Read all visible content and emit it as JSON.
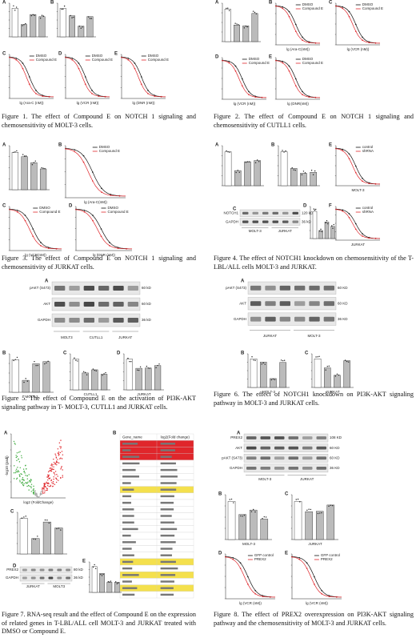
{
  "figures": [
    {
      "caption": "Figure 1. The effect of Compound E on NOTCH 1 signaling and chemosensitivity of MOLT-3 cells.",
      "legend": [
        "DMSO",
        "Compound E"
      ],
      "panels": [
        {
          "letter": "A"
        },
        {
          "letter": "B"
        },
        {
          "letter": "C",
          "xlabel": "lg (Ara-C (nM))"
        },
        {
          "letter": "D",
          "xlabel": "lg (VCR (nM))"
        },
        {
          "letter": "E",
          "xlabel": "lg (DNR (nM))"
        }
      ]
    },
    {
      "caption": "Figure 2. The effect of Compound E on NOTCH 1 signaling and chemosensitivity of CUTLL1 cells.",
      "legend": [
        "DMSO",
        "Compound E"
      ],
      "panels": [
        {
          "letter": "A"
        },
        {
          "letter": "B",
          "xlabel": "lg (Ara-C(nM))"
        },
        {
          "letter": "C",
          "xlabel": "lg (VCR (nM))"
        },
        {
          "letter": "D",
          "xlabel": "lg (VCR (nM))"
        },
        {
          "letter": "E",
          "xlabel": "lg (DNR(nM))"
        }
      ]
    },
    {
      "caption": "Figure 3. The effect of Compound E on NOTCH 1 signaling and chemosensitivity of JURKAT cells.",
      "legend": [
        "DMSO",
        "Compound E"
      ],
      "panels": [
        {
          "letter": "A"
        },
        {
          "letter": "B",
          "xlabel": "lg (Ara-C(nM))"
        },
        {
          "letter": "C",
          "xlabel": "lg (VCR(nM))"
        },
        {
          "letter": "D",
          "xlabel": "lg (DNR (nM))"
        }
      ]
    },
    {
      "caption": "Figure 4. The effect of NOTCH1 knockdown on chemosensitivity of the T-LBL/ALL cells MOLT-3 and JURKAT.",
      "legend": [
        "control",
        "shRNA"
      ],
      "blot": {
        "rows": [
          "NOTCH1",
          "GAPDH"
        ],
        "sizes": [
          "120 kD",
          "36 kD"
        ],
        "groups": [
          "MOLT-3",
          "JURKAT"
        ]
      },
      "panels": [
        {
          "letter": "A"
        },
        {
          "letter": "B"
        },
        {
          "letter": "E",
          "xlabel": "MOLT-3"
        },
        {
          "letter": "C"
        },
        {
          "letter": "D"
        },
        {
          "letter": "F",
          "xlabel": "JURKAT"
        }
      ]
    },
    {
      "caption": "Figure 5. The effect of Compound E on the activation of PI3K-AKT signaling pathway in T- MOLT-3, CUTLL1 and JURKAT cells.",
      "blot": {
        "rows": [
          "pAKT (S473)",
          "AKT",
          "GAPDH"
        ],
        "sizes": [
          "60 kD",
          "60 kD",
          "36 kD"
        ],
        "groups": [
          "MOLT3",
          "CUTLL1",
          "JURKAT"
        ]
      },
      "panels": [
        {
          "letter": "A"
        },
        {
          "letter": "B",
          "xlabel": "MOLT-3"
        },
        {
          "letter": "C",
          "xlabel": "CUTLL1"
        },
        {
          "letter": "D",
          "xlabel": "JURKAT"
        }
      ]
    },
    {
      "caption": "Figure 6. The effect of NOTCH1 knockdown on PI3K-AKT signaling pathway in MOLT-3 and JURKAT cells.",
      "blot": {
        "rows": [
          "pAKT (S473)",
          "AKT",
          "GAPDH"
        ],
        "sizes": [
          "60 KD",
          "60 KD",
          "36 KD"
        ],
        "groups": [
          "JURKAT",
          "MOLT-3"
        ]
      },
      "panels": [
        {
          "letter": "A"
        },
        {
          "letter": "B",
          "xlabel": "MOLT-3"
        },
        {
          "letter": "C",
          "xlabel": "JURKAT"
        }
      ]
    },
    {
      "caption": "Figure 7. RNA-seq result and the effect of Compound E on the expression of related genes in T-LBL/ALL cell MOLT-3 and JURKAT treated with DMSO or Compound E.",
      "legend": [
        "MOLT-3",
        "JURKAT"
      ],
      "blot": {
        "rows": [
          "PREX2",
          "GAPDH"
        ],
        "sizes": [
          "80 kD",
          "36 kD"
        ],
        "groups": [
          "JURKAT",
          "MOLT3"
        ]
      },
      "volcano": {
        "xlabel": "log2 (FoldChange)",
        "ylabel": "-log10 (padj)"
      },
      "table": {
        "header": [
          "Gene_name",
          "log2(Fold change)"
        ]
      },
      "panels": [
        {
          "letter": "A"
        },
        {
          "letter": "B"
        },
        {
          "letter": "C"
        },
        {
          "letter": "D"
        },
        {
          "letter": "E"
        }
      ]
    },
    {
      "caption": "Figure 8. The effect of PREX2 overexpression on PI3K-AKT signaling pathway and the chemosensitivity of MOLT-3 and JURKAT cells.",
      "legend": [
        "GFP control",
        "PREX2"
      ],
      "blot": {
        "rows": [
          "PREX2",
          "AKT",
          "pAKT (S473)",
          "GAPDH"
        ],
        "sizes": [
          "108 KD",
          "60 KD",
          "60 KD",
          "36 KD"
        ],
        "groups": [
          "MOLT-3",
          "JURKAT"
        ]
      },
      "panels": [
        {
          "letter": "A"
        },
        {
          "letter": "B",
          "xlabel": "MOLT-3"
        },
        {
          "letter": "C",
          "xlabel": "JURKAT"
        },
        {
          "letter": "D",
          "xlabel": "lg (VCR (nM))"
        },
        {
          "letter": "E",
          "xlabel": "lg (VCR (nM))"
        }
      ]
    }
  ]
}
